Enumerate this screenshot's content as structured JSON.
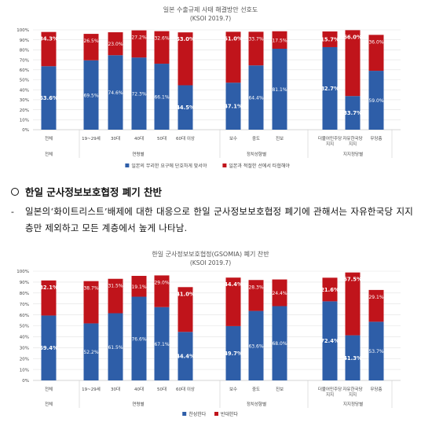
{
  "chart_data": [
    {
      "type": "bar",
      "stacked": true,
      "title": "일본 수출규제 사태 해결방안 선호도",
      "subtitle": "(KSOI 2019.7)",
      "categories": [
        "전체",
        "19~29세",
        "30대",
        "40대",
        "50대",
        "60대 이상",
        "보수",
        "중도",
        "진보",
        "더불어민주당 지지",
        "자유한국당 지지",
        "무당층"
      ],
      "groups": [
        {
          "label": "전체",
          "start": 0,
          "end": 0
        },
        {
          "label": "연령별",
          "start": 1,
          "end": 5
        },
        {
          "label": "정치성향별",
          "start": 6,
          "end": 8
        },
        {
          "label": "지지정당별",
          "start": 9,
          "end": 11
        }
      ],
      "series": [
        {
          "name": "일본의 무리한 요구에 단호하게 맞서야",
          "color": "#2e5ea8",
          "values": [
            63.6,
            69.5,
            74.6,
            72.3,
            66.1,
            44.5,
            47.1,
            64.4,
            81.1,
            82.7,
            33.7,
            59.0
          ],
          "labels": [
            "63.6%",
            "69.5%",
            "74.6%",
            "72.3%",
            "66.1%",
            "44.5%",
            "47.1%",
            "64.4%",
            "81.1%",
            "82.7%",
            "33.7%",
            "59.0%"
          ]
        },
        {
          "name": "일본과 적절한 선에서 타협해야",
          "color": "#c0141b",
          "values": [
            34.3,
            26.5,
            23.0,
            27.2,
            32.6,
            53.0,
            51.0,
            33.7,
            17.5,
            15.7,
            66.0,
            36.0
          ],
          "labels": [
            "34.3%",
            "26.5%",
            "23.0%",
            "27.2%",
            "32.6%",
            "53.0%",
            "51.0%",
            "33.7%",
            "17.5%",
            "15.7%",
            "66.0%",
            "36.0%"
          ]
        }
      ],
      "bold_labels": [
        0,
        5,
        6,
        9,
        10
      ],
      "ylim": [
        0,
        100
      ],
      "yticks": [
        "0%",
        "10%",
        "20%",
        "30%",
        "40%",
        "50%",
        "60%",
        "70%",
        "80%",
        "90%",
        "100%"
      ],
      "legend": "bottom"
    },
    {
      "type": "bar",
      "stacked": true,
      "title": "한일 군사정보보호협정(GSOMIA) 폐기 찬반",
      "subtitle": "(KSOI 2019.7)",
      "categories": [
        "전체",
        "19~29세",
        "30대",
        "40대",
        "50대",
        "60대 이상",
        "보수",
        "중도",
        "진보",
        "더불어민주당 지지",
        "자유한국당 지지",
        "무당층"
      ],
      "groups": [
        {
          "label": "전체",
          "start": 0,
          "end": 0
        },
        {
          "label": "연령별",
          "start": 1,
          "end": 5
        },
        {
          "label": "정치성향별",
          "start": 6,
          "end": 8
        },
        {
          "label": "지지정당별",
          "start": 9,
          "end": 11
        }
      ],
      "series": [
        {
          "name": "찬성한다",
          "color": "#2e5ea8",
          "values": [
            59.4,
            52.2,
            61.5,
            76.6,
            67.1,
            44.4,
            49.7,
            63.6,
            68.0,
            72.4,
            41.3,
            53.7
          ],
          "labels": [
            "59.4%",
            "52.2%",
            "61.5%",
            "76.6%",
            "67.1%",
            "44.4%",
            "49.7%",
            "63.6%",
            "68.0%",
            "72.4%",
            "41.3%",
            "53.7%"
          ]
        },
        {
          "name": "반대한다",
          "color": "#c0141b",
          "values": [
            32.1,
            38.7,
            31.5,
            19.1,
            29.0,
            41.0,
            44.4,
            28.3,
            24.4,
            21.6,
            57.5,
            29.1
          ],
          "labels": [
            "32.1%",
            "38.7%",
            "31.5%",
            "19.1%",
            "29.0%",
            "41.0%",
            "44.4%",
            "28.3%",
            "24.4%",
            "21.6%",
            "57.5%",
            "29.1%"
          ]
        }
      ],
      "bold_labels": [
        0,
        5,
        6,
        9,
        10
      ],
      "ylim": [
        0,
        100
      ],
      "yticks": [
        "0%",
        "10%",
        "20%",
        "30%",
        "40%",
        "50%",
        "60%",
        "70%",
        "80%",
        "90%",
        "100%"
      ],
      "legend": "bottom"
    }
  ],
  "section": {
    "heading": "한일 군사정보보호협정 폐기 찬반",
    "bullet_dash": "-",
    "bullet_text": "일본의‘화이트리스트’배제에 대한 대응으로 한일 군사정보보호협정 폐기에 관해서는 자유한국당 지지층만 제외하고 모든 계층에서 높게 나타남."
  }
}
